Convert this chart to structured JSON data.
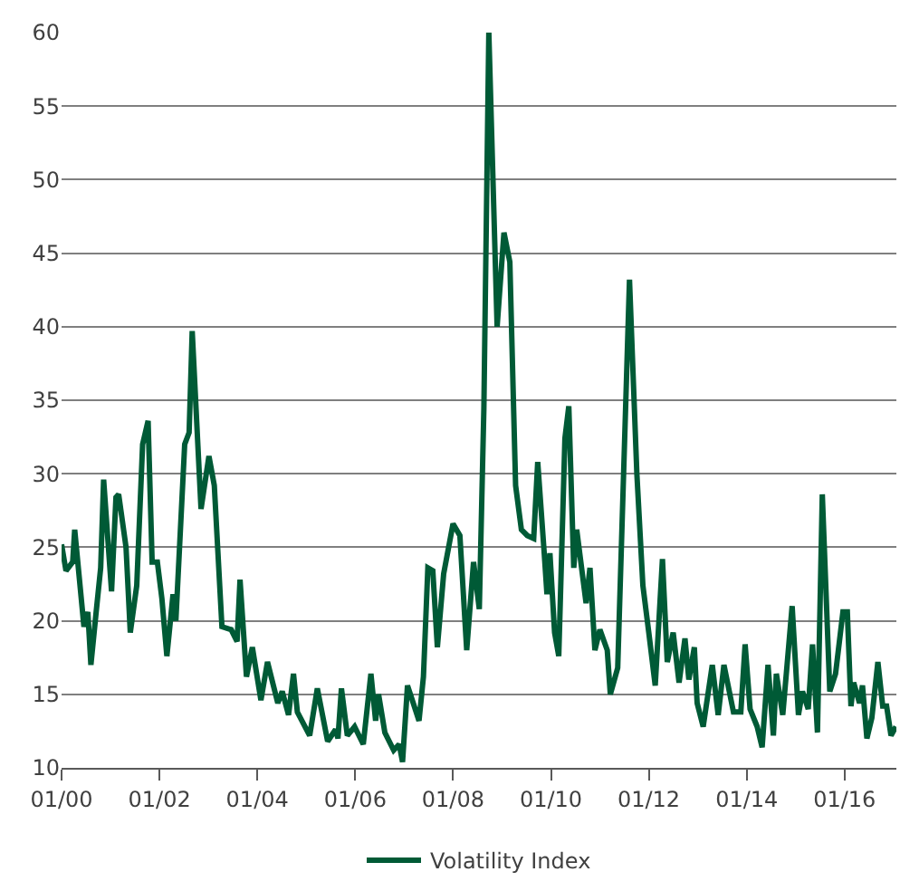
{
  "chart_data": {
    "type": "line",
    "xlim": [
      "2000-01-01",
      "2017-01-22"
    ],
    "ylim": [
      10,
      60
    ],
    "xticks": [
      {
        "value": "2000-01",
        "label": "01/00"
      },
      {
        "value": "2002-01",
        "label": "01/02"
      },
      {
        "value": "2004-01",
        "label": "01/04"
      },
      {
        "value": "2006-01",
        "label": "01/06"
      },
      {
        "value": "2008-01",
        "label": "01/08"
      },
      {
        "value": "2010-01",
        "label": "01/10"
      },
      {
        "value": "2012-01",
        "label": "01/12"
      },
      {
        "value": "2014-01",
        "label": "01/14"
      },
      {
        "value": "2016-01",
        "label": "01/16"
      }
    ],
    "yticks": [
      10,
      15,
      20,
      25,
      30,
      35,
      40,
      45,
      50,
      55,
      60
    ],
    "grid": "y",
    "legend": "bottom",
    "marker": "none",
    "line_style": "solid",
    "series": [
      {
        "name": "Volatility Index",
        "color": "#005a36",
        "x": [
          "2000-01-01",
          "2000-02-03",
          "2000-03-24",
          "2000-04-08",
          "2000-06-16",
          "2000-07-15",
          "2000-08-07",
          "2000-09-13",
          "2000-10-19",
          "2000-11-10",
          "2001-01-08",
          "2001-02-10",
          "2001-03-02",
          "2001-04-26",
          "2001-05-28",
          "2001-07-15",
          "2001-08-28",
          "2001-10-08",
          "2001-11-07",
          "2001-12-16",
          "2002-01-19",
          "2002-02-25",
          "2002-04-12",
          "2002-05-03",
          "2002-07-08",
          "2002-08-10",
          "2002-09-02",
          "2002-11-07",
          "2003-01-05",
          "2003-02-14",
          "2003-04-12",
          "2003-06-20",
          "2003-08-03",
          "2003-08-25",
          "2003-10-12",
          "2003-11-25",
          "2004-01-28",
          "2004-03-17",
          "2004-06-02",
          "2004-07-05",
          "2004-08-21",
          "2004-09-27",
          "2004-10-26",
          "2005-01-26",
          "2005-03-24",
          "2005-06-09",
          "2005-08-07",
          "2005-08-25",
          "2005-09-20",
          "2005-11-03",
          "2005-12-27",
          "2006-03-02",
          "2006-04-28",
          "2006-06-02",
          "2006-06-24",
          "2006-08-10",
          "2006-10-15",
          "2006-11-25",
          "2006-12-20",
          "2007-01-26",
          "2007-04-22",
          "2007-05-25",
          "2007-06-27",
          "2007-08-03",
          "2007-09-06",
          "2007-10-23",
          "2008-01-01",
          "2008-02-21",
          "2008-04-12",
          "2008-06-02",
          "2008-07-15",
          "2008-08-18",
          "2008-09-24",
          "2008-11-25",
          "2009-01-15",
          "2009-02-28",
          "2009-04-12",
          "2009-05-25",
          "2009-07-08",
          "2009-08-25",
          "2009-09-24",
          "2009-11-10",
          "2009-12-02",
          "2009-12-24",
          "2010-01-28",
          "2010-02-28",
          "2010-04-15",
          "2010-05-14",
          "2010-06-20",
          "2010-07-12",
          "2010-09-20",
          "2010-10-19",
          "2010-11-25",
          "2011-01-01",
          "2011-02-25",
          "2011-03-20",
          "2011-05-14",
          "2011-08-10",
          "2011-10-04",
          "2011-11-18",
          "2012-01-01",
          "2012-02-18",
          "2012-04-12",
          "2012-05-18",
          "2012-07-01",
          "2012-08-14",
          "2012-09-27",
          "2012-10-26",
          "2012-12-06",
          "2012-12-27",
          "2013-02-10",
          "2013-04-19",
          "2013-06-02",
          "2013-07-15",
          "2013-09-24",
          "2013-11-18",
          "2013-12-20",
          "2014-01-26",
          "2014-03-20",
          "2014-04-26",
          "2014-06-09",
          "2014-07-19",
          "2014-08-10",
          "2014-09-27",
          "2014-12-06",
          "2015-01-22",
          "2015-02-21",
          "2015-04-05",
          "2015-05-07",
          "2015-06-13",
          "2015-07-19",
          "2015-09-13",
          "2015-10-26",
          "2015-12-20",
          "2016-01-22",
          "2016-02-18",
          "2016-03-09",
          "2016-04-22",
          "2016-05-14",
          "2016-06-16",
          "2016-07-23",
          "2016-09-06",
          "2016-10-12",
          "2016-11-10",
          "2016-12-13",
          "2017-01-19"
        ],
        "values": [
          25.2,
          23.4,
          24,
          26.2,
          19.6,
          20.6,
          17,
          20.4,
          23.6,
          29.6,
          22,
          28.4,
          28.6,
          25,
          19.2,
          22.4,
          32,
          33.6,
          24,
          24,
          21.5,
          17.6,
          21.8,
          20,
          32,
          32.8,
          39.7,
          27.6,
          31.2,
          29.2,
          19.6,
          19.4,
          18.6,
          22.8,
          16.2,
          18.2,
          14.6,
          17.2,
          14.4,
          15.2,
          13.6,
          16.4,
          13.8,
          12.2,
          15.4,
          11.8,
          12.6,
          12,
          15.4,
          12.2,
          12.8,
          11.6,
          16.4,
          13.2,
          15,
          12.4,
          11.2,
          11.6,
          10.4,
          15.6,
          13.2,
          16.2,
          23.6,
          23.4,
          18.2,
          23.2,
          26.6,
          25.8,
          18,
          24,
          20.8,
          34.4,
          60,
          40,
          46.4,
          44.4,
          29.2,
          26.2,
          25.8,
          25.6,
          30.8,
          24.8,
          21.8,
          24.6,
          19.2,
          17.6,
          32.4,
          34.6,
          23.6,
          26.2,
          21.2,
          23.6,
          18,
          19.4,
          18,
          15,
          16.8,
          43.2,
          30,
          22.4,
          19.2,
          15.6,
          24.2,
          17.2,
          19.2,
          15.8,
          18.8,
          16,
          18.2,
          14.4,
          12.8,
          17,
          13.6,
          17,
          13.8,
          13.8,
          18.4,
          14,
          12.8,
          11.4,
          17,
          12.2,
          16.4,
          13.6,
          21,
          13.6,
          15.2,
          14,
          18.4,
          12.4,
          28.6,
          15.2,
          16.4,
          20.6,
          20.6,
          14.2,
          15.8,
          14.4,
          15.6,
          12,
          13.4,
          17.2,
          14.2,
          14.2,
          12.2,
          12.8
        ]
      }
    ]
  }
}
